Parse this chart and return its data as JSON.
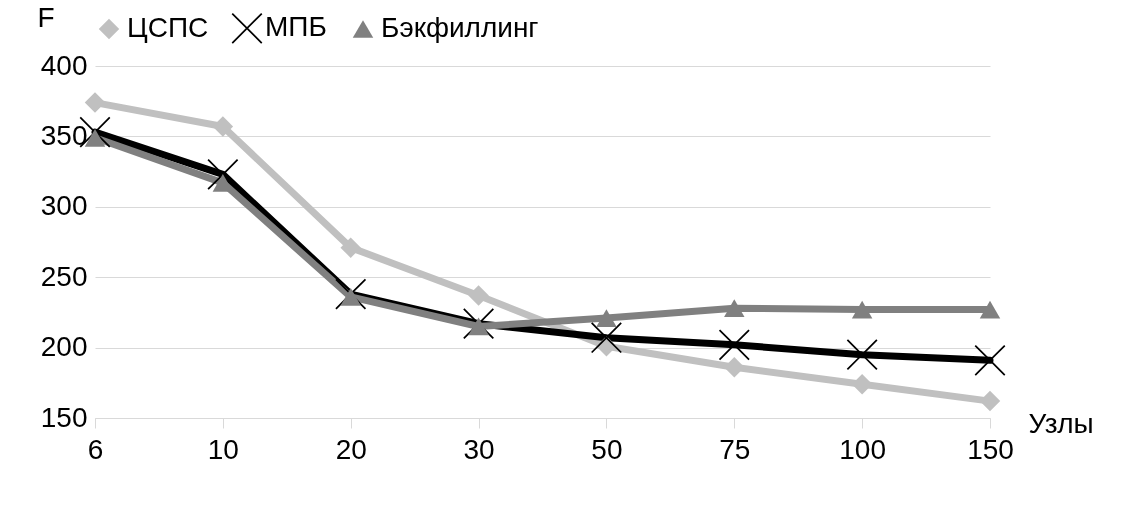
{
  "chart_data": {
    "type": "line",
    "ylabel": "F",
    "xlabel": "Узлы",
    "categories": [
      "6",
      "10",
      "20",
      "30",
      "50",
      "75",
      "100",
      "150"
    ],
    "ylim": [
      150,
      400
    ],
    "yticks": [
      150,
      200,
      250,
      300,
      350,
      400
    ],
    "grid": "y",
    "legend": "top",
    "line_style": "solid",
    "series": [
      {
        "name": "ЦСПС",
        "color": "#c0c0c0",
        "marker": "diamond",
        "values": [
          374,
          357,
          271,
          237,
          201,
          186,
          174,
          162
        ]
      },
      {
        "name": "МПБ",
        "color": "#000000",
        "marker": "cross",
        "values": [
          353,
          323,
          238,
          217,
          207,
          202,
          195,
          191
        ]
      },
      {
        "name": "Бэкфиллинг",
        "color": "#808080",
        "marker": "triangle",
        "values": [
          349,
          317,
          236,
          215,
          221,
          228,
          227,
          227
        ]
      }
    ]
  }
}
